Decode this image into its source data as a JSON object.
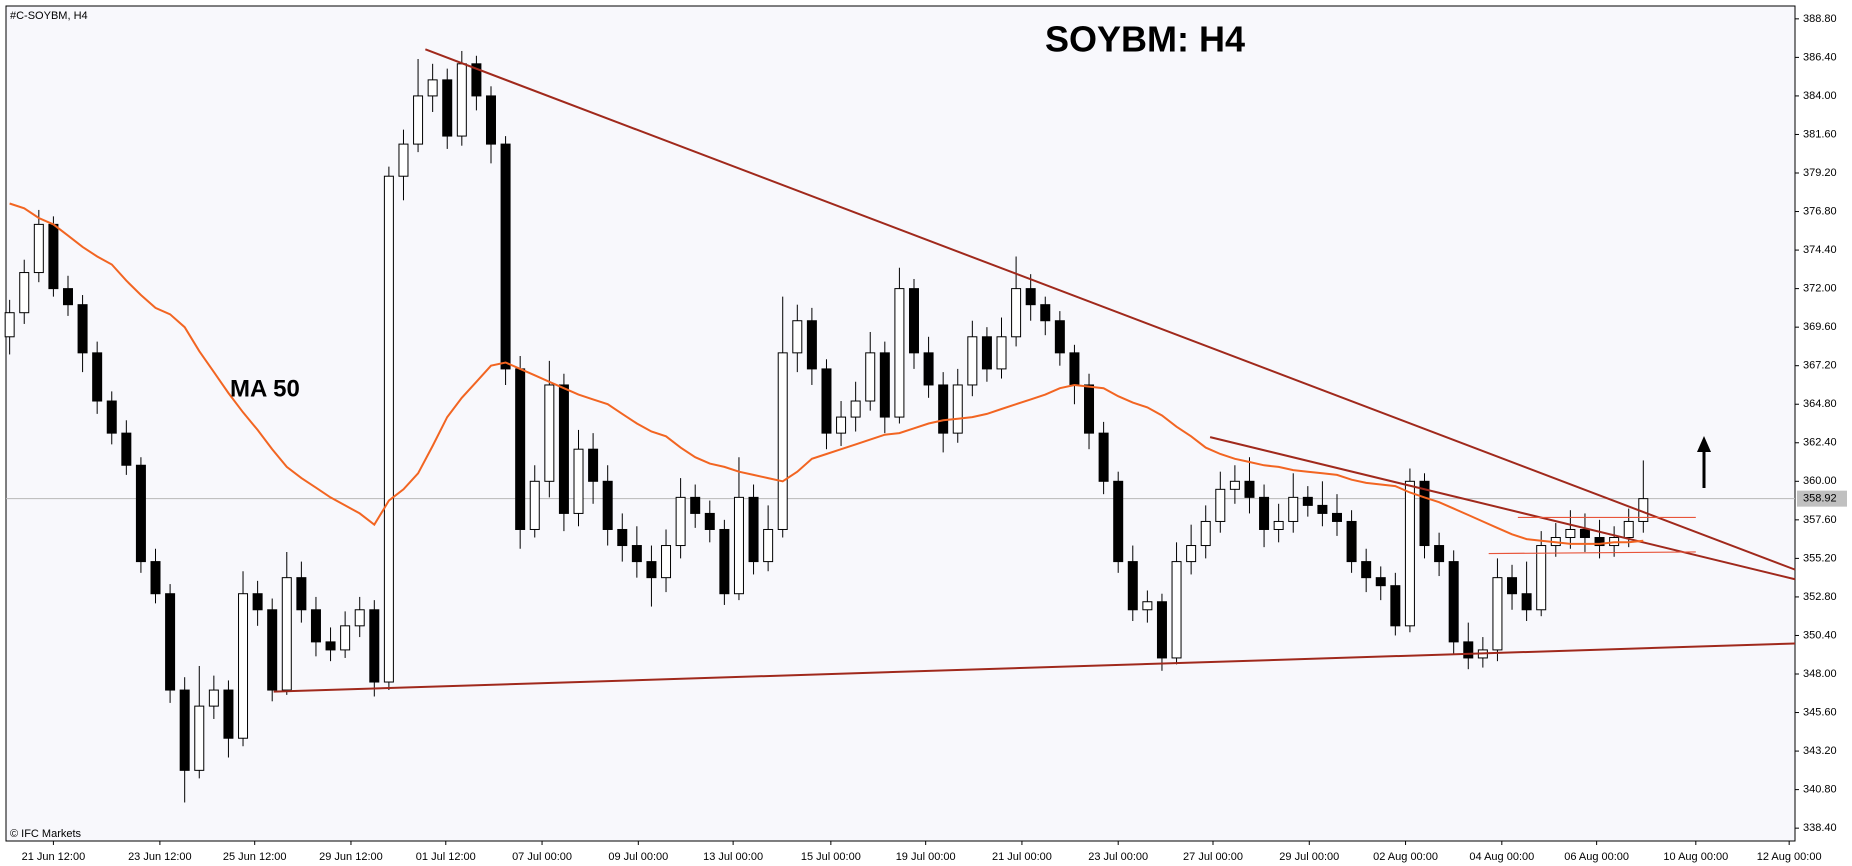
{
  "chart_data": {
    "type": "candlestick",
    "title": "SOYBM: H4",
    "symbol_label": "#C-SOYBM, H4",
    "watermark": "© IFC Markets",
    "last_price": 358.92,
    "last_price_label": "358.92",
    "up_color": "#ffffff",
    "down_color": "#000000",
    "open": [
      369,
      370.5,
      373,
      376,
      372,
      371,
      368,
      365,
      363,
      361,
      355,
      353,
      347,
      342,
      346,
      347,
      344,
      353,
      352,
      347,
      354,
      352,
      350,
      349.5,
      351,
      352,
      347.5,
      379,
      381,
      384,
      385,
      381.5,
      386,
      384,
      381,
      367,
      357,
      360,
      366,
      358,
      362,
      360,
      357,
      356,
      355,
      354,
      356,
      359,
      358,
      357,
      353,
      359,
      355,
      357,
      368,
      370,
      367,
      363,
      364,
      365,
      368,
      364,
      372,
      368,
      366,
      363,
      366,
      369,
      367,
      369,
      372,
      371,
      370,
      368,
      366,
      363,
      360,
      355,
      352,
      352.5,
      349,
      355,
      356,
      357.5,
      359.5,
      360,
      359,
      357,
      357.5,
      359,
      358.5,
      358,
      357.5,
      355,
      354,
      353.5,
      351,
      360,
      356,
      355,
      350,
      349,
      349.5,
      354,
      353,
      352,
      356,
      356.5,
      357,
      356.5,
      356,
      356.5,
      357.5
    ],
    "high": [
      371.3,
      373.8,
      376.9,
      376.5,
      372.8,
      371.6,
      368.7,
      365.6,
      363.8,
      361.5,
      355.8,
      353.6,
      347.8,
      348.5,
      347.9,
      347.6,
      354.4,
      353.8,
      352.7,
      355.6,
      355,
      352.8,
      350.9,
      351.9,
      352.8,
      352.6,
      379.6,
      381.9,
      386.3,
      386,
      385.7,
      386.8,
      386.5,
      384.6,
      381.5,
      367.8,
      361,
      367.5,
      366.7,
      363.2,
      363,
      361,
      358,
      357.2,
      356,
      357,
      360.2,
      359.8,
      358.8,
      357.6,
      361.5,
      359.8,
      358.5,
      371.5,
      371,
      370.8,
      367.6,
      365,
      366.2,
      369.3,
      368.7,
      373.3,
      372.6,
      369,
      366.8,
      367,
      370,
      369.6,
      370.2,
      374,
      372.9,
      371.5,
      370.6,
      368.5,
      366.7,
      363.7,
      360.6,
      356,
      353.2,
      353,
      356.2,
      357.3,
      358.5,
      360.6,
      361,
      361.5,
      359.8,
      358.6,
      360.5,
      359.7,
      360,
      359.2,
      358.2,
      355.8,
      354.7,
      354.3,
      360.8,
      360.5,
      356.8,
      355.7,
      351.2,
      350.3,
      355.2,
      354.8,
      355,
      356.9,
      357.4,
      358.2,
      358,
      357.6,
      357.2,
      358.3,
      361.3
    ],
    "low": [
      367.9,
      369.8,
      372.4,
      371.5,
      370.3,
      366.8,
      364.2,
      362.3,
      360.4,
      354.3,
      352.4,
      346.2,
      340,
      341.5,
      345.2,
      342.8,
      343.5,
      351,
      346.3,
      346.7,
      351.2,
      349.1,
      348.8,
      349,
      350.3,
      346.6,
      347,
      377.5,
      380.5,
      383,
      380.7,
      380.9,
      383.1,
      379.8,
      366,
      355.8,
      356.5,
      359,
      356.9,
      357.2,
      358.6,
      356,
      355,
      354,
      352.2,
      353.1,
      355.2,
      357.1,
      356.2,
      352.3,
      352.6,
      354.2,
      354.4,
      356.5,
      366.8,
      366,
      362,
      362.2,
      363.1,
      364.4,
      363,
      363.6,
      367,
      365.2,
      361.8,
      362.4,
      365.3,
      366.2,
      366.4,
      368.4,
      370,
      369.1,
      367.2,
      364.8,
      362,
      359.2,
      354.3,
      351.3,
      351.2,
      348.2,
      348.6,
      354.2,
      355.2,
      356.8,
      358.6,
      358,
      355.9,
      356.2,
      356.8,
      357.8,
      357.2,
      356.6,
      354.3,
      353.1,
      352.6,
      350.4,
      350.6,
      355.2,
      354.1,
      349.2,
      348.3,
      348.4,
      348.8,
      352,
      351.3,
      351.6,
      355.3,
      355.8,
      355.6,
      355.2,
      355.3,
      355.9,
      356.8
    ],
    "close": [
      370.5,
      373,
      376,
      372,
      371,
      368,
      365,
      363,
      361,
      355,
      353,
      347,
      342,
      346,
      347,
      344,
      353,
      352,
      347,
      354,
      352,
      350,
      349.5,
      351,
      352,
      347.5,
      379,
      381,
      384,
      385,
      381.5,
      386,
      384,
      381,
      367,
      357,
      360,
      366,
      358,
      362,
      360,
      357,
      356,
      355,
      354,
      356,
      359,
      358,
      357,
      353,
      359,
      355,
      357,
      368,
      370,
      367,
      363,
      364,
      365,
      368,
      364,
      372,
      368,
      366,
      363,
      366,
      369,
      367,
      369,
      372,
      371,
      370,
      368,
      366,
      363,
      360,
      355,
      352,
      352.5,
      349,
      355,
      356,
      357.5,
      359.5,
      360,
      359,
      357,
      357.5,
      359,
      358.5,
      358,
      357.5,
      355,
      354,
      353.5,
      351,
      360,
      356,
      355,
      350,
      349,
      349.5,
      354,
      353,
      352,
      356,
      356.5,
      357,
      356.5,
      356,
      356.5,
      357.5,
      358.92
    ],
    "series": [
      {
        "name": "MA 50",
        "color": "#f26522",
        "values": [
          377.3,
          377.0,
          376.4,
          376.0,
          375.3,
          374.6,
          374.0,
          373.5,
          372.5,
          371.6,
          370.8,
          370.4,
          369.6,
          368.1,
          366.8,
          365.5,
          364.3,
          363.2,
          362,
          360.9,
          360.2,
          359.6,
          359,
          358.5,
          358.0,
          357.3,
          358.8,
          359.5,
          360.5,
          362.2,
          364,
          365.2,
          366.2,
          367.2,
          367.4,
          367,
          366.6,
          366.2,
          365.8,
          365.4,
          365.1,
          364.8,
          364.2,
          363.6,
          363.1,
          362.8,
          362.1,
          361.5,
          361.1,
          360.9,
          360.6,
          360.4,
          360.2,
          360.0,
          360.6,
          361.4,
          361.7,
          362,
          362.3,
          362.6,
          362.9,
          363,
          363.3,
          363.6,
          363.8,
          363.9,
          364,
          364.2,
          364.5,
          364.8,
          365.1,
          365.4,
          365.8,
          366,
          365.9,
          365.8,
          365.3,
          364.9,
          364.6,
          364.1,
          363.4,
          362.8,
          362.1,
          361.7,
          361.4,
          361.2,
          361,
          360.9,
          360.7,
          360.6,
          360.5,
          360.4,
          360.1,
          359.9,
          359.8,
          359.7,
          359.3,
          359,
          358.7,
          358.3,
          357.9,
          357.5,
          357.1,
          356.7,
          356.4,
          356.3,
          356.2,
          356.1,
          356.1,
          356.1,
          356.2,
          356.2,
          356.3
        ]
      }
    ],
    "trendlines": [
      {
        "color": "#a0291c",
        "x": [
          28.5,
          122.4
        ],
        "y": [
          386.9,
          354.5
        ]
      },
      {
        "color": "#a0291c",
        "x": [
          18.1,
          122.4
        ],
        "y": [
          346.9,
          349.9
        ]
      },
      {
        "color": "#a0291c",
        "x": [
          82.3,
          122.4
        ],
        "y": [
          362.75,
          353.9
        ]
      },
      {
        "color": "#e8553a",
        "x": [
          103.4,
          115.6
        ],
        "y": [
          357.75,
          357.75
        ]
      },
      {
        "color": "#e8553a",
        "x": [
          101.4,
          115.6
        ],
        "y": [
          355.5,
          355.6
        ]
      }
    ],
    "xlim": [
      -0.25,
      122.4
    ],
    "ylim": [
      337.6,
      389.6
    ],
    "yticks": [
      {
        "value": 388.8,
        "label": "388.80"
      },
      {
        "value": 386.4,
        "label": "386.40"
      },
      {
        "value": 384.0,
        "label": "384.00"
      },
      {
        "value": 381.6,
        "label": "381.60"
      },
      {
        "value": 379.2,
        "label": "379.20"
      },
      {
        "value": 376.8,
        "label": "376.80"
      },
      {
        "value": 374.4,
        "label": "374.40"
      },
      {
        "value": 372.0,
        "label": "372.00"
      },
      {
        "value": 369.6,
        "label": "369.60"
      },
      {
        "value": 367.2,
        "label": "367.20"
      },
      {
        "value": 364.8,
        "label": "364.80"
      },
      {
        "value": 362.4,
        "label": "362.40"
      },
      {
        "value": 360.0,
        "label": "360.00"
      },
      {
        "value": 357.6,
        "label": "357.60"
      },
      {
        "value": 355.2,
        "label": "355.20"
      },
      {
        "value": 352.8,
        "label": "352.80"
      },
      {
        "value": 350.4,
        "label": "350.40"
      },
      {
        "value": 348.0,
        "label": "348.00"
      },
      {
        "value": 345.6,
        "label": "345.60"
      },
      {
        "value": 343.2,
        "label": "343.20"
      },
      {
        "value": 340.8,
        "label": "340.80"
      },
      {
        "value": 338.4,
        "label": "338.40"
      }
    ],
    "xticks": [
      {
        "value": 3,
        "label": "21 Jun 12:00"
      },
      {
        "value": 10.3,
        "label": "23 Jun 12:00"
      },
      {
        "value": 16.8,
        "label": "25 Jun 12:00"
      },
      {
        "value": 23.4,
        "label": "29 Jun 12:00"
      },
      {
        "value": 29.9,
        "label": "01 Jul 12:00"
      },
      {
        "value": 36.5,
        "label": "07 Jul 00:00"
      },
      {
        "value": 43.1,
        "label": "09 Jul 00:00"
      },
      {
        "value": 49.6,
        "label": "13 Jul 00:00"
      },
      {
        "value": 56.3,
        "label": "15 Jul 00:00"
      },
      {
        "value": 62.8,
        "label": "19 Jul 00:00"
      },
      {
        "value": 69.4,
        "label": "21 Jul 00:00"
      },
      {
        "value": 76,
        "label": "23 Jul 00:00"
      },
      {
        "value": 82.5,
        "label": "27 Jul 00:00"
      },
      {
        "value": 89.1,
        "label": "29 Jul 00:00"
      },
      {
        "value": 95.7,
        "label": "02 Aug 00:00"
      },
      {
        "value": 102.3,
        "label": "04 Aug 00:00"
      },
      {
        "value": 108.8,
        "label": "06 Aug 00:00"
      },
      {
        "value": 115.6,
        "label": "10 Aug 00:00"
      },
      {
        "value": 122,
        "label": "12 Aug 00:00"
      }
    ]
  }
}
